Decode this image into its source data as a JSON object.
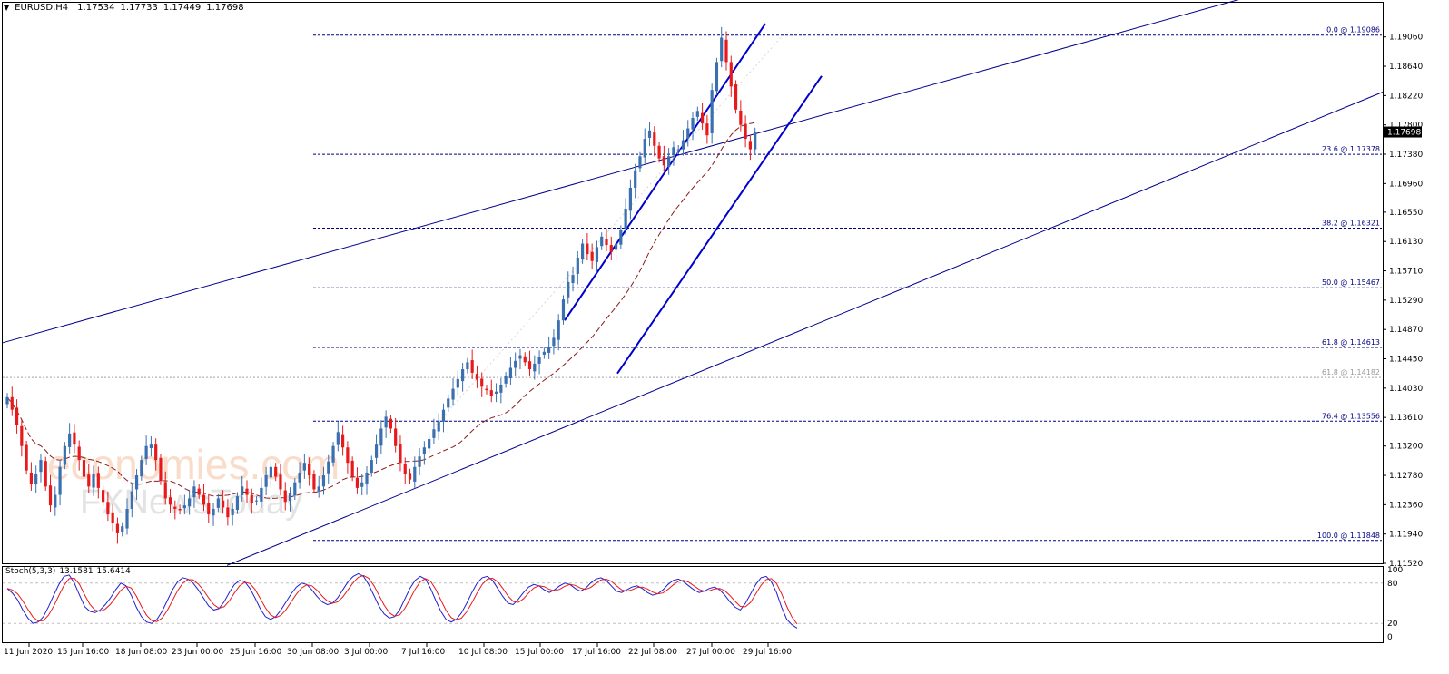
{
  "header": {
    "symbol_tf": "EURUSD,H4",
    "open": "1.17534",
    "high": "1.17733",
    "low": "1.17449",
    "close": "1.17698"
  },
  "watermark": {
    "line1": "economies.com",
    "line2": "FXNewsToday"
  },
  "colors": {
    "bull": "#3a6fb0",
    "bear": "#e8191b",
    "fib": "#000080",
    "channel": "#0000cd",
    "trend": "#00008b",
    "ma": "#8b1a1a",
    "stoch_main": "#1f1fd0",
    "stoch_signal": "#e8191b",
    "current_line": "#b0dde0"
  },
  "chart_data": {
    "type": "candlestick",
    "symbol": "EURUSD",
    "timeframe": "H4",
    "ylim": [
      1.1152,
      1.1955
    ],
    "y_ticks": [
      "1.19060",
      "1.18640",
      "1.18220",
      "1.17800",
      "1.17380",
      "1.16960",
      "1.16550",
      "1.16130",
      "1.15710",
      "1.15290",
      "1.14870",
      "1.14450",
      "1.14030",
      "1.13610",
      "1.13200",
      "1.12780",
      "1.12360",
      "1.11940",
      "1.11520"
    ],
    "x_ticks": [
      "11 Jun 2020",
      "15 Jun 16:00",
      "18 Jun 08:00",
      "23 Jun 00:00",
      "25 Jun 16:00",
      "30 Jun 08:00",
      "3 Jul 00:00",
      "7 Jul 16:00",
      "10 Jul 08:00",
      "15 Jul 00:00",
      "17 Jul 16:00",
      "22 Jul 08:00",
      "27 Jul 00:00",
      "29 Jul 16:00"
    ],
    "current_price": "1.17698",
    "fib_levels": [
      {
        "label": "0.0 @ 1.19086",
        "price": 1.19086
      },
      {
        "label": "23.6 @ 1.17378",
        "price": 1.17378
      },
      {
        "label": "38.2 @ 1.16321",
        "price": 1.16321
      },
      {
        "label": "50.0 @ 1.15467",
        "price": 1.15467
      },
      {
        "label": "61.8 @ 1.14613",
        "price": 1.14613
      },
      {
        "label": "76.4 @ 1.13556",
        "price": 1.13556
      },
      {
        "label": "100.0 @ 1.11848",
        "price": 1.11848
      }
    ],
    "extra_level": {
      "label": "61.8 @ 1.14182",
      "price": 1.14182
    },
    "closes": [
      1.139,
      1.1372,
      1.135,
      1.132,
      1.1285,
      1.1265,
      1.128,
      1.13,
      1.1262,
      1.1235,
      1.125,
      1.129,
      1.132,
      1.1338,
      1.1322,
      1.13,
      1.1276,
      1.1262,
      1.128,
      1.126,
      1.124,
      1.1222,
      1.121,
      1.1195,
      1.1205,
      1.123,
      1.1255,
      1.1278,
      1.13,
      1.132,
      1.1322,
      1.13,
      1.127,
      1.1245,
      1.1236,
      1.123,
      1.1228,
      1.1235,
      1.1245,
      1.1262,
      1.125,
      1.1236,
      1.1222,
      1.123,
      1.1245,
      1.1232,
      1.1218,
      1.123,
      1.1248,
      1.1262,
      1.125,
      1.1238,
      1.1242,
      1.126,
      1.1278,
      1.129,
      1.1276,
      1.1258,
      1.124,
      1.1252,
      1.1268,
      1.1282,
      1.1296,
      1.1278,
      1.1258,
      1.1262,
      1.1278,
      1.1298,
      1.132,
      1.134,
      1.1318,
      1.1296,
      1.1276,
      1.126,
      1.1268,
      1.1282,
      1.13,
      1.1322,
      1.1345,
      1.1362,
      1.1345,
      1.132,
      1.1296,
      1.128,
      1.1272,
      1.129,
      1.1305,
      1.1318,
      1.133,
      1.1344,
      1.1355,
      1.1372,
      1.1388,
      1.1402,
      1.1416,
      1.143,
      1.144,
      1.1425,
      1.1415,
      1.1405,
      1.14,
      1.1392,
      1.1398,
      1.1408,
      1.142,
      1.1432,
      1.1442,
      1.145,
      1.144,
      1.143,
      1.1438,
      1.1448,
      1.1455,
      1.1462,
      1.1475,
      1.15,
      1.153,
      1.1555,
      1.1565,
      1.159,
      1.161,
      1.1595,
      1.1585,
      1.1605,
      1.162,
      1.1608,
      1.1598,
      1.161,
      1.163,
      1.166,
      1.169,
      1.1715,
      1.1735,
      1.176,
      1.1772,
      1.175,
      1.1732,
      1.1722,
      1.1735,
      1.1748,
      1.1745,
      1.1758,
      1.1775,
      1.179,
      1.18,
      1.1782,
      1.1765,
      1.183,
      1.187,
      1.1905,
      1.187,
      1.1835,
      1.1802,
      1.178,
      1.176,
      1.1745,
      1.177
    ],
    "ma_start_index": 0,
    "stochastic": {
      "label": "Stoch(5,3,3)",
      "main_value": "13.1581",
      "signal_value": "15.6414",
      "levels": [
        80,
        20
      ],
      "y_ticks": [
        "100",
        "80",
        "20",
        "0"
      ],
      "main": [
        72,
        65,
        55,
        40,
        28,
        20,
        22,
        30,
        45,
        62,
        78,
        90,
        92,
        80,
        62,
        45,
        38,
        36,
        40,
        48,
        58,
        70,
        80,
        76,
        62,
        44,
        30,
        22,
        20,
        26,
        38,
        54,
        70,
        82,
        88,
        86,
        80,
        70,
        58,
        46,
        40,
        42,
        52,
        66,
        78,
        84,
        82,
        72,
        58,
        42,
        30,
        26,
        30,
        40,
        52,
        64,
        74,
        80,
        78,
        70,
        60,
        52,
        48,
        50,
        58,
        70,
        82,
        90,
        94,
        90,
        78,
        62,
        46,
        34,
        28,
        30,
        40,
        56,
        72,
        84,
        90,
        86,
        72,
        54,
        38,
        26,
        22,
        26,
        36,
        50,
        66,
        80,
        88,
        90,
        84,
        72,
        60,
        50,
        48,
        56,
        66,
        74,
        78,
        76,
        70,
        66,
        70,
        76,
        80,
        78,
        72,
        68,
        72,
        80,
        86,
        88,
        84,
        76,
        68,
        66,
        70,
        74,
        76,
        72,
        66,
        62,
        64,
        70,
        78,
        84,
        86,
        82,
        76,
        70,
        66,
        68,
        72,
        74,
        70,
        62,
        52,
        44,
        40,
        50,
        64,
        78,
        88,
        90,
        82,
        66,
        44,
        26,
        18,
        13
      ]
    }
  }
}
